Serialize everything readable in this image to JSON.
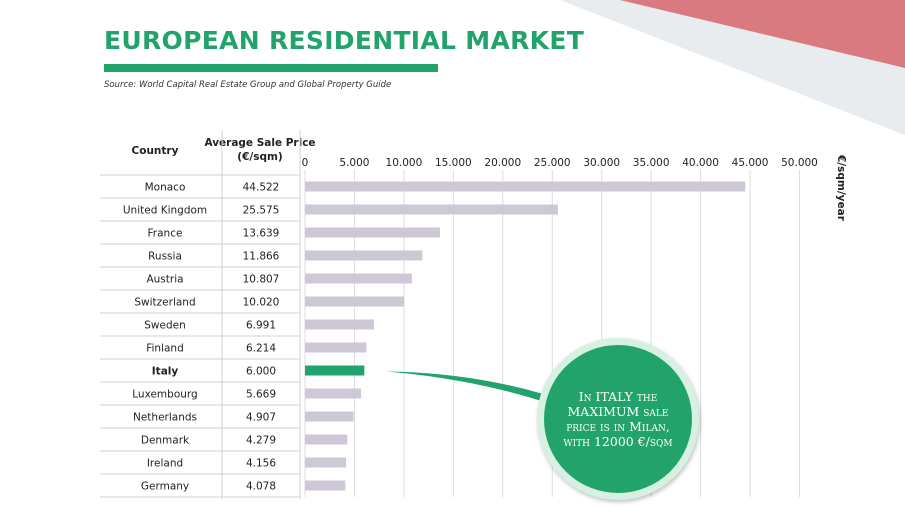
{
  "header": {
    "title": "EUROPEAN RESIDENTIAL MARKET",
    "source": "Source: World Capital Real Estate Group and Global Property Guide"
  },
  "table": {
    "country_header": "Country",
    "price_header": "Average Sale Price (€/sqm)"
  },
  "callout": {
    "text": "In ITALY the MAXIMUM sale price is in Milan, with 12000 €/sqm"
  },
  "colors": {
    "title": "#23a36c",
    "bar": "#cdc7d6",
    "highlight": "#23a36c",
    "decor_red": "#d97a80",
    "decor_grey": "#e9ecef"
  },
  "chart_data": {
    "type": "bar",
    "orientation": "horizontal",
    "categories": [
      "Monaco",
      "United Kingdom",
      "France",
      "Russia",
      "Austria",
      "Switzerland",
      "Sweden",
      "Finland",
      "Italy",
      "Luxembourg",
      "Netherlands",
      "Denmark",
      "Ireland",
      "Germany"
    ],
    "values": [
      44522,
      25575,
      13639,
      11866,
      10807,
      10020,
      6991,
      6214,
      6000,
      5669,
      4907,
      4279,
      4156,
      4078
    ],
    "value_labels": [
      "44.522",
      "25.575",
      "13.639",
      "11.866",
      "10.807",
      "10.020",
      "6.991",
      "6.214",
      "6.000",
      "5.669",
      "4.907",
      "4.279",
      "4.156",
      "4.078"
    ],
    "highlight": "Italy",
    "ticks": [
      "0",
      "5.000",
      "10.000",
      "15.000",
      "20.000",
      "25.000",
      "30.000",
      "35.000",
      "40.000",
      "45.000",
      "50.000"
    ],
    "xlim": [
      0,
      50000
    ],
    "xlabel": "€/sqm/year",
    "grid": true
  }
}
